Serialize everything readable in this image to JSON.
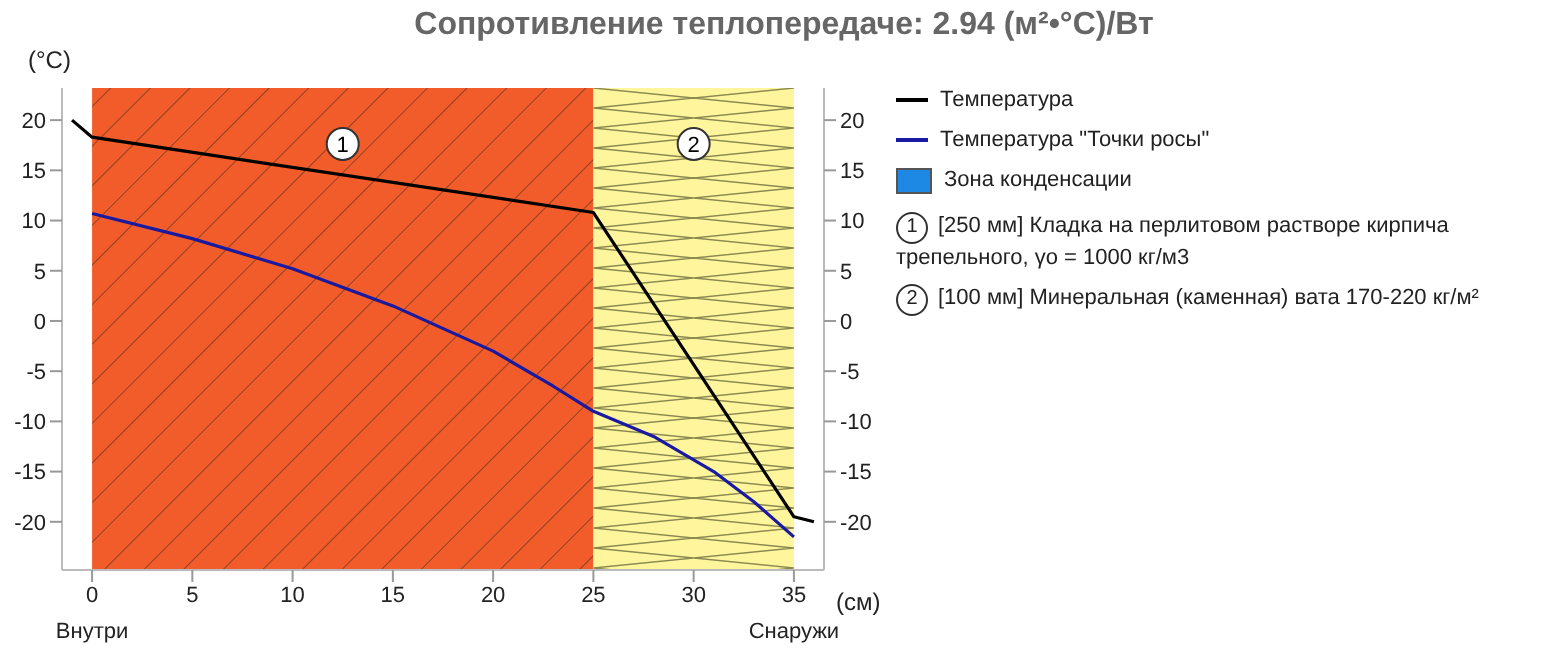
{
  "chart_data": {
    "type": "line",
    "title": "Сопротивление теплопередаче: 2.94 (м²•°C)/Вт",
    "xlabel": "(см)",
    "ylabel": "(°C)",
    "xlim": [
      -1.5,
      36.5
    ],
    "xticks": [
      0,
      5,
      10,
      15,
      20,
      25,
      30,
      35
    ],
    "ylim": [
      -24.8,
      23.2
    ],
    "yticks": [
      -20,
      -15,
      -10,
      -5,
      0,
      5,
      10,
      15,
      20
    ],
    "y2lim": [
      -24.8,
      23.2
    ],
    "y2ticks": [
      -20,
      -15,
      -10,
      -5,
      0,
      5,
      10,
      15,
      20
    ],
    "series": [
      {
        "name": "Температура",
        "color": "#000000",
        "x": [
          -1,
          0,
          25,
          35,
          36
        ],
        "values": [
          20,
          18.3,
          10.8,
          -19.5,
          -20
        ]
      },
      {
        "name": "Температура \"Точки росы\"",
        "color": "#1a1aa0",
        "x": [
          0,
          5,
          10,
          15,
          20,
          23,
          25,
          28,
          31,
          33,
          35
        ],
        "values": [
          10.7,
          8.2,
          5.2,
          1.5,
          -3,
          -6.5,
          -9,
          -11.5,
          -15,
          -18,
          -21.5
        ]
      },
      {
        "name": "Зона конденсации",
        "type": "area",
        "color": "#1e88e5"
      }
    ],
    "bands": [
      {
        "axis": "x",
        "from": 0,
        "to": 25,
        "label": "1",
        "color": "#f25c2a"
      },
      {
        "axis": "x",
        "from": 25,
        "to": 35,
        "label": "2",
        "color": "#fff59d"
      }
    ],
    "annotations": [
      "Внутри",
      "Снаружи",
      "[250 мм] Кладка на перлитовом растворе кирпича трепельного, γo = 1000 кг/м3",
      "[100 мм] Минеральная (каменная) вата 170-220 кг/м²"
    ],
    "legend": "right",
    "marker": "none",
    "line_style": "solid"
  }
}
